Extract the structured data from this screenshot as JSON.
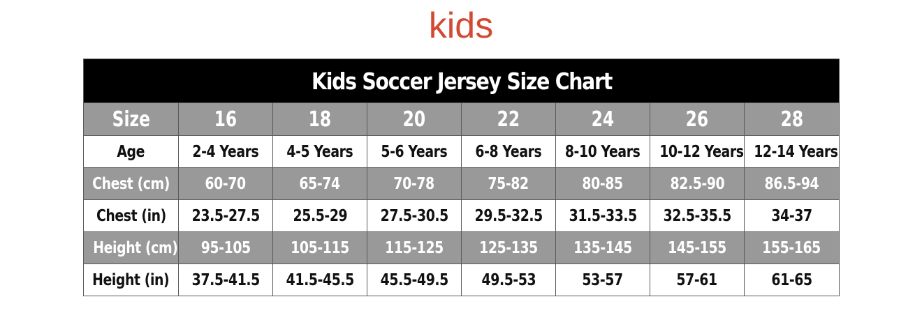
{
  "heading": "kids",
  "table": {
    "title": "Kids Soccer Jersey Size Chart",
    "size_label": "Size",
    "sizes": [
      "16",
      "18",
      "20",
      "22",
      "24",
      "26",
      "28"
    ],
    "rows": [
      {
        "label": "Age",
        "style": "white",
        "values": [
          "2-4 Years",
          "4-5 Years",
          "5-6 Years",
          "6-8 Years",
          "8-10 Years",
          "10-12 Years",
          "12-14 Years"
        ]
      },
      {
        "label": "Chest (cm)",
        "style": "gray",
        "values": [
          "60-70",
          "65-74",
          "70-78",
          "75-82",
          "80-85",
          "82.5-90",
          "86.5-94"
        ]
      },
      {
        "label": "Chest (in)",
        "style": "white",
        "values": [
          "23.5-27.5",
          "25.5-29",
          "27.5-30.5",
          "29.5-32.5",
          "31.5-33.5",
          "32.5-35.5",
          "34-37"
        ]
      },
      {
        "label": "Height (cm)",
        "style": "gray",
        "values": [
          "95-105",
          "105-115",
          "115-125",
          "125-135",
          "135-145",
          "145-155",
          "155-165"
        ]
      },
      {
        "label": "Height (in)",
        "style": "white",
        "values": [
          "37.5-41.5",
          "41.5-45.5",
          "45.5-49.5",
          "49.5-53",
          "53-57",
          "57-61",
          "61-65"
        ]
      }
    ]
  },
  "colors": {
    "heading": "#d24a33",
    "title_bar": "#000000",
    "gray_row": "#999999"
  }
}
